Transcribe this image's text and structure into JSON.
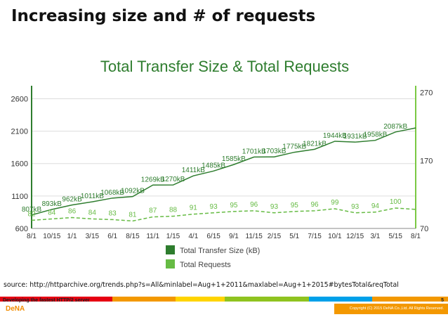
{
  "slide": {
    "title": "Increasing size and # of requests",
    "source": "source: http://httparchive.org/trends.php?s=All&minlabel=Aug+1+2011&maxlabel=Aug+1+2015#bytesTotal&reqTotal",
    "footer_left": "Developing the fastest HTTP/2 server",
    "page_number": "5",
    "logo": "DeNA",
    "copyright": "Copyright (C) 2015 DeNA Co.,Ltd. All Rights Reserved."
  },
  "colors": {
    "size_line": "#2e7d2e",
    "requests_line": "#66bb44",
    "axis_right": "#7ac943",
    "grid": "#dddddd",
    "footer_segments": [
      "#e60012",
      "#f39800",
      "#ffd400",
      "#8fc31f",
      "#00a0e9",
      "#f39800"
    ]
  },
  "chart_data": {
    "type": "line",
    "title": "Total Transfer Size & Total Requests",
    "categories": [
      "8/1",
      "10/15",
      "1/1",
      "3/15",
      "6/1",
      "8/15",
      "11/1",
      "1/15",
      "4/1",
      "6/15",
      "9/1",
      "11/15",
      "2/15",
      "5/1",
      "7/15",
      "10/1",
      "12/15",
      "3/1",
      "5/15",
      "8/1"
    ],
    "y_left": {
      "ticks": [
        600,
        1100,
        1600,
        2100,
        2600
      ],
      "range": [
        600,
        2800
      ]
    },
    "y_right": {
      "ticks": [
        70,
        170,
        270
      ],
      "range": [
        70,
        280
      ]
    },
    "grid": true,
    "legend_position": "bottom-center",
    "series": [
      {
        "name": "Total Transfer Size (kB)",
        "axis": "left",
        "values": [
          807,
          893,
          962,
          1011,
          1068,
          1092,
          1269,
          1270,
          1411,
          1485,
          1585,
          1701,
          1703,
          1775,
          1821,
          1944,
          1931,
          1958,
          2087,
          2150
        ],
        "data_labels": [
          {
            "i": 0,
            "text": "807kB"
          },
          {
            "i": 1,
            "text": "893kB"
          },
          {
            "i": 2,
            "text": "962kB"
          },
          {
            "i": 3,
            "text": "1011kB"
          },
          {
            "i": 4,
            "text": "1068kB"
          },
          {
            "i": 5,
            "text": "1092kB"
          },
          {
            "i": 6,
            "text": "1269kB"
          },
          {
            "i": 7,
            "text": "1270kB"
          },
          {
            "i": 8,
            "text": "1411kB"
          },
          {
            "i": 9,
            "text": "1485kB"
          },
          {
            "i": 10,
            "text": "1585kB"
          },
          {
            "i": 11,
            "text": "1701kB"
          },
          {
            "i": 12,
            "text": "1703kB"
          },
          {
            "i": 13,
            "text": "1775kB"
          },
          {
            "i": 14,
            "text": "1821kB"
          },
          {
            "i": 15,
            "text": "1944kB"
          },
          {
            "i": 16,
            "text": "1931kB"
          },
          {
            "i": 17,
            "text": "1958kB"
          },
          {
            "i": 18,
            "text": "2087kB"
          }
        ]
      },
      {
        "name": "Total Requests",
        "axis": "right",
        "values": [
          82,
          84,
          86,
          84,
          83,
          81,
          87,
          88,
          91,
          93,
          95,
          96,
          93,
          95,
          96,
          99,
          93,
          94,
          100,
          98
        ],
        "data_labels": [
          {
            "i": 0,
            "text": "82"
          },
          {
            "i": 1,
            "text": "84"
          },
          {
            "i": 2,
            "text": "86"
          },
          {
            "i": 3,
            "text": "84"
          },
          {
            "i": 4,
            "text": "83"
          },
          {
            "i": 5,
            "text": "81"
          },
          {
            "i": 6,
            "text": "87"
          },
          {
            "i": 7,
            "text": "88"
          },
          {
            "i": 8,
            "text": "91"
          },
          {
            "i": 9,
            "text": "93"
          },
          {
            "i": 10,
            "text": "95"
          },
          {
            "i": 11,
            "text": "96"
          },
          {
            "i": 12,
            "text": "93"
          },
          {
            "i": 13,
            "text": "95"
          },
          {
            "i": 14,
            "text": "96"
          },
          {
            "i": 15,
            "text": "99"
          },
          {
            "i": 16,
            "text": "93"
          },
          {
            "i": 17,
            "text": "94"
          },
          {
            "i": 18,
            "text": "100"
          }
        ]
      }
    ]
  }
}
